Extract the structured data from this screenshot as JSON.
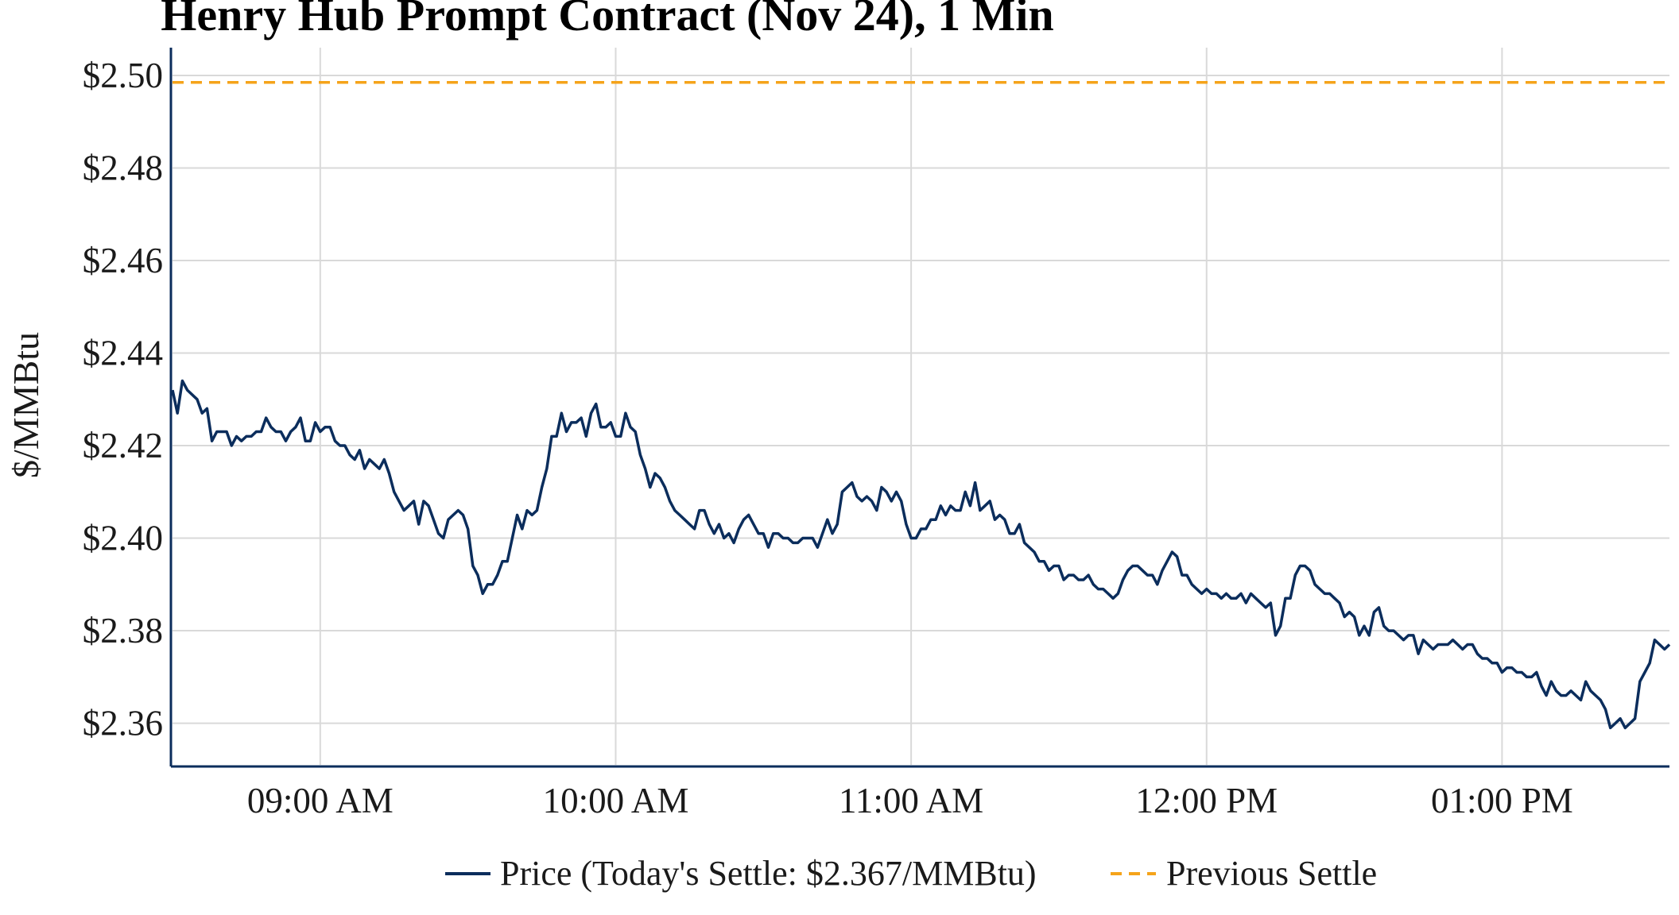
{
  "chart_data": {
    "type": "line",
    "title": "Henry Hub Prompt Contract (Nov 24), 1 Min",
    "ylabel": "$/MMBtu",
    "xlabel": "",
    "x_ticks": [
      "09:00 AM",
      "10:00 AM",
      "11:00 AM",
      "12:00 PM",
      "01:00 PM"
    ],
    "x_tick_minutes": [
      540,
      600,
      660,
      720,
      780
    ],
    "x_range_minutes": [
      510,
      814
    ],
    "y_ticks": [
      "$2.36",
      "$2.38",
      "$2.40",
      "$2.42",
      "$2.44",
      "$2.46",
      "$2.48",
      "$2.50"
    ],
    "y_tick_values": [
      2.36,
      2.38,
      2.4,
      2.42,
      2.44,
      2.46,
      2.48,
      2.5
    ],
    "ylim": [
      2.351,
      2.506
    ],
    "grid": true,
    "legend_position": "bottom-center",
    "series": [
      {
        "name": "Price (Today's Settle: $2.367/MMBtu)",
        "color": "#0b2d5c",
        "style": "solid",
        "points": [
          [
            510,
            2.432
          ],
          [
            511,
            2.427
          ],
          [
            512,
            2.434
          ],
          [
            513,
            2.432
          ],
          [
            515,
            2.43
          ],
          [
            516,
            2.427
          ],
          [
            517,
            2.428
          ],
          [
            518,
            2.421
          ],
          [
            519,
            2.423
          ],
          [
            521,
            2.423
          ],
          [
            522,
            2.42
          ],
          [
            523,
            2.422
          ],
          [
            524,
            2.421
          ],
          [
            525,
            2.422
          ],
          [
            526,
            2.422
          ],
          [
            527,
            2.423
          ],
          [
            528,
            2.423
          ],
          [
            529,
            2.426
          ],
          [
            530,
            2.424
          ],
          [
            531,
            2.423
          ],
          [
            532,
            2.423
          ],
          [
            533,
            2.421
          ],
          [
            534,
            2.423
          ],
          [
            535,
            2.424
          ],
          [
            536,
            2.426
          ],
          [
            537,
            2.421
          ],
          [
            538,
            2.421
          ],
          [
            539,
            2.425
          ],
          [
            540,
            2.423
          ],
          [
            541,
            2.424
          ],
          [
            542,
            2.424
          ],
          [
            543,
            2.421
          ],
          [
            544,
            2.42
          ],
          [
            545,
            2.42
          ],
          [
            546,
            2.418
          ],
          [
            547,
            2.417
          ],
          [
            548,
            2.419
          ],
          [
            549,
            2.415
          ],
          [
            550,
            2.417
          ],
          [
            551,
            2.416
          ],
          [
            552,
            2.415
          ],
          [
            553,
            2.417
          ],
          [
            554,
            2.414
          ],
          [
            555,
            2.41
          ],
          [
            556,
            2.408
          ],
          [
            557,
            2.406
          ],
          [
            558,
            2.407
          ],
          [
            559,
            2.408
          ],
          [
            560,
            2.403
          ],
          [
            561,
            2.408
          ],
          [
            562,
            2.407
          ],
          [
            563,
            2.404
          ],
          [
            564,
            2.401
          ],
          [
            565,
            2.4
          ],
          [
            566,
            2.404
          ],
          [
            567,
            2.405
          ],
          [
            568,
            2.406
          ],
          [
            569,
            2.405
          ],
          [
            570,
            2.402
          ],
          [
            571,
            2.394
          ],
          [
            572,
            2.392
          ],
          [
            573,
            2.388
          ],
          [
            574,
            2.39
          ],
          [
            575,
            2.39
          ],
          [
            576,
            2.392
          ],
          [
            577,
            2.395
          ],
          [
            578,
            2.395
          ],
          [
            579,
            2.4
          ],
          [
            580,
            2.405
          ],
          [
            581,
            2.402
          ],
          [
            582,
            2.406
          ],
          [
            583,
            2.405
          ],
          [
            584,
            2.406
          ],
          [
            585,
            2.411
          ],
          [
            586,
            2.415
          ],
          [
            587,
            2.422
          ],
          [
            588,
            2.422
          ],
          [
            589,
            2.427
          ],
          [
            590,
            2.423
          ],
          [
            591,
            2.425
          ],
          [
            592,
            2.425
          ],
          [
            593,
            2.426
          ],
          [
            594,
            2.422
          ],
          [
            595,
            2.427
          ],
          [
            596,
            2.429
          ],
          [
            597,
            2.424
          ],
          [
            598,
            2.424
          ],
          [
            599,
            2.425
          ],
          [
            600,
            2.422
          ],
          [
            601,
            2.422
          ],
          [
            602,
            2.427
          ],
          [
            603,
            2.424
          ],
          [
            604,
            2.423
          ],
          [
            605,
            2.418
          ],
          [
            606,
            2.415
          ],
          [
            607,
            2.411
          ],
          [
            608,
            2.414
          ],
          [
            609,
            2.413
          ],
          [
            610,
            2.411
          ],
          [
            611,
            2.408
          ],
          [
            612,
            2.406
          ],
          [
            613,
            2.405
          ],
          [
            614,
            2.404
          ],
          [
            615,
            2.403
          ],
          [
            616,
            2.402
          ],
          [
            617,
            2.406
          ],
          [
            618,
            2.406
          ],
          [
            619,
            2.403
          ],
          [
            620,
            2.401
          ],
          [
            621,
            2.403
          ],
          [
            622,
            2.4
          ],
          [
            623,
            2.401
          ],
          [
            624,
            2.399
          ],
          [
            625,
            2.402
          ],
          [
            626,
            2.404
          ],
          [
            627,
            2.405
          ],
          [
            628,
            2.403
          ],
          [
            629,
            2.401
          ],
          [
            630,
            2.401
          ],
          [
            631,
            2.398
          ],
          [
            632,
            2.401
          ],
          [
            633,
            2.401
          ],
          [
            634,
            2.4
          ],
          [
            635,
            2.4
          ],
          [
            636,
            2.399
          ],
          [
            637,
            2.399
          ],
          [
            638,
            2.4
          ],
          [
            639,
            2.4
          ],
          [
            640,
            2.4
          ],
          [
            641,
            2.398
          ],
          [
            642,
            2.401
          ],
          [
            643,
            2.404
          ],
          [
            644,
            2.401
          ],
          [
            645,
            2.403
          ],
          [
            646,
            2.41
          ],
          [
            647,
            2.411
          ],
          [
            648,
            2.412
          ],
          [
            649,
            2.409
          ],
          [
            650,
            2.408
          ],
          [
            651,
            2.409
          ],
          [
            652,
            2.408
          ],
          [
            653,
            2.406
          ],
          [
            654,
            2.411
          ],
          [
            655,
            2.41
          ],
          [
            656,
            2.408
          ],
          [
            657,
            2.41
          ],
          [
            658,
            2.408
          ],
          [
            659,
            2.403
          ],
          [
            660,
            2.4
          ],
          [
            661,
            2.4
          ],
          [
            662,
            2.402
          ],
          [
            663,
            2.402
          ],
          [
            664,
            2.404
          ],
          [
            665,
            2.404
          ],
          [
            666,
            2.407
          ],
          [
            667,
            2.405
          ],
          [
            668,
            2.407
          ],
          [
            669,
            2.406
          ],
          [
            670,
            2.406
          ],
          [
            671,
            2.41
          ],
          [
            672,
            2.407
          ],
          [
            673,
            2.412
          ],
          [
            674,
            2.406
          ],
          [
            675,
            2.407
          ],
          [
            676,
            2.408
          ],
          [
            677,
            2.404
          ],
          [
            678,
            2.405
          ],
          [
            679,
            2.404
          ],
          [
            680,
            2.401
          ],
          [
            681,
            2.401
          ],
          [
            682,
            2.403
          ],
          [
            683,
            2.399
          ],
          [
            684,
            2.398
          ],
          [
            685,
            2.397
          ],
          [
            686,
            2.395
          ],
          [
            687,
            2.395
          ],
          [
            688,
            2.393
          ],
          [
            689,
            2.394
          ],
          [
            690,
            2.394
          ],
          [
            691,
            2.391
          ],
          [
            692,
            2.392
          ],
          [
            693,
            2.392
          ],
          [
            694,
            2.391
          ],
          [
            695,
            2.391
          ],
          [
            696,
            2.392
          ],
          [
            697,
            2.39
          ],
          [
            698,
            2.389
          ],
          [
            699,
            2.389
          ],
          [
            700,
            2.388
          ],
          [
            701,
            2.387
          ],
          [
            702,
            2.388
          ],
          [
            703,
            2.391
          ],
          [
            704,
            2.393
          ],
          [
            705,
            2.394
          ],
          [
            706,
            2.394
          ],
          [
            707,
            2.393
          ],
          [
            708,
            2.392
          ],
          [
            709,
            2.392
          ],
          [
            710,
            2.39
          ],
          [
            711,
            2.393
          ],
          [
            712,
            2.395
          ],
          [
            713,
            2.397
          ],
          [
            714,
            2.396
          ],
          [
            715,
            2.392
          ],
          [
            716,
            2.392
          ],
          [
            717,
            2.39
          ],
          [
            718,
            2.389
          ],
          [
            719,
            2.388
          ],
          [
            720,
            2.389
          ],
          [
            721,
            2.388
          ],
          [
            722,
            2.388
          ],
          [
            723,
            2.387
          ],
          [
            724,
            2.388
          ],
          [
            725,
            2.387
          ],
          [
            726,
            2.387
          ],
          [
            727,
            2.388
          ],
          [
            728,
            2.386
          ],
          [
            729,
            2.388
          ],
          [
            730,
            2.387
          ],
          [
            731,
            2.386
          ],
          [
            732,
            2.385
          ],
          [
            733,
            2.386
          ],
          [
            734,
            2.379
          ],
          [
            735,
            2.381
          ],
          [
            736,
            2.387
          ],
          [
            737,
            2.387
          ],
          [
            738,
            2.392
          ],
          [
            739,
            2.394
          ],
          [
            740,
            2.394
          ],
          [
            741,
            2.393
          ],
          [
            742,
            2.39
          ],
          [
            743,
            2.389
          ],
          [
            744,
            2.388
          ],
          [
            745,
            2.388
          ],
          [
            746,
            2.387
          ],
          [
            747,
            2.386
          ],
          [
            748,
            2.383
          ],
          [
            749,
            2.384
          ],
          [
            750,
            2.383
          ],
          [
            751,
            2.379
          ],
          [
            752,
            2.381
          ],
          [
            753,
            2.379
          ],
          [
            754,
            2.384
          ],
          [
            755,
            2.385
          ],
          [
            756,
            2.381
          ],
          [
            757,
            2.38
          ],
          [
            758,
            2.38
          ],
          [
            759,
            2.379
          ],
          [
            760,
            2.378
          ],
          [
            761,
            2.379
          ],
          [
            762,
            2.379
          ],
          [
            763,
            2.375
          ],
          [
            764,
            2.378
          ],
          [
            765,
            2.377
          ],
          [
            766,
            2.376
          ],
          [
            767,
            2.377
          ],
          [
            768,
            2.377
          ],
          [
            769,
            2.377
          ],
          [
            770,
            2.378
          ],
          [
            771,
            2.377
          ],
          [
            772,
            2.376
          ],
          [
            773,
            2.377
          ],
          [
            774,
            2.377
          ],
          [
            775,
            2.375
          ],
          [
            776,
            2.374
          ],
          [
            777,
            2.374
          ],
          [
            778,
            2.373
          ],
          [
            779,
            2.373
          ],
          [
            780,
            2.371
          ],
          [
            781,
            2.372
          ],
          [
            782,
            2.372
          ],
          [
            783,
            2.371
          ],
          [
            784,
            2.371
          ],
          [
            785,
            2.37
          ],
          [
            786,
            2.37
          ],
          [
            787,
            2.371
          ],
          [
            788,
            2.368
          ],
          [
            789,
            2.366
          ],
          [
            790,
            2.369
          ],
          [
            791,
            2.367
          ],
          [
            792,
            2.366
          ],
          [
            793,
            2.366
          ],
          [
            794,
            2.367
          ],
          [
            795,
            2.366
          ],
          [
            796,
            2.365
          ],
          [
            797,
            2.369
          ],
          [
            798,
            2.367
          ],
          [
            799,
            2.366
          ],
          [
            800,
            2.365
          ],
          [
            801,
            2.363
          ],
          [
            802,
            2.359
          ],
          [
            803,
            2.36
          ],
          [
            804,
            2.361
          ],
          [
            805,
            2.359
          ],
          [
            806,
            2.36
          ],
          [
            807,
            2.361
          ],
          [
            808,
            2.369
          ],
          [
            809,
            2.371
          ],
          [
            810,
            2.373
          ],
          [
            811,
            2.378
          ],
          [
            812,
            2.377
          ],
          [
            813,
            2.376
          ],
          [
            814,
            2.377
          ]
        ]
      },
      {
        "name": "Previous Settle",
        "color": "#f5a31a",
        "style": "dashed",
        "value": 2.4985
      }
    ]
  }
}
